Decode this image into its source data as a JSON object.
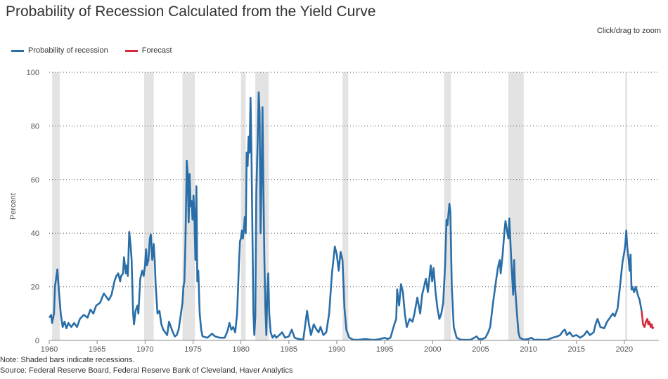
{
  "header": {
    "title": "Probability of Recession Calculated from the Yield Curve",
    "zoom_hint": "Click/drag to zoom"
  },
  "footer": {
    "note": "Note: Shaded bars indicate recessions.",
    "source": "Source: Federal Reserve Board, Federal Reserve Bank of Cleveland, Haver Analytics"
  },
  "colors": {
    "series": "#2a6ea8",
    "forecast": "#d42a3c",
    "recession": "#e3e3e3",
    "grid": "#444444"
  },
  "chart_data": {
    "type": "line",
    "title": "Probability of Recession Calculated from the Yield Curve",
    "xlabel": "",
    "ylabel": "Percent",
    "xlim": [
      1960,
      2023.6
    ],
    "ylim": [
      0,
      100
    ],
    "x_ticks": [
      1960,
      1965,
      1970,
      1975,
      1980,
      1985,
      1990,
      1995,
      2000,
      2005,
      2010,
      2015,
      2020
    ],
    "y_ticks": [
      0,
      20,
      40,
      60,
      80,
      100
    ],
    "grid": "horizontal dotted",
    "legend_position": "top-left",
    "recessions": [
      [
        1960.3,
        1961.1
      ],
      [
        1969.9,
        1970.9
      ],
      [
        1973.9,
        1975.2
      ],
      [
        1980.0,
        1980.5
      ],
      [
        1981.5,
        1982.9
      ],
      [
        1990.6,
        1991.2
      ],
      [
        2001.2,
        2001.9
      ],
      [
        2007.9,
        2009.5
      ],
      [
        2020.1,
        2020.3
      ]
    ],
    "series": [
      {
        "name": "Probability of recession",
        "points": [
          [
            1960.0,
            8.5
          ],
          [
            1960.2,
            9.5
          ],
          [
            1960.3,
            6.5
          ],
          [
            1960.5,
            10
          ],
          [
            1960.6,
            20
          ],
          [
            1960.85,
            26.5
          ],
          [
            1961.0,
            19
          ],
          [
            1961.2,
            10
          ],
          [
            1961.4,
            5
          ],
          [
            1961.6,
            7
          ],
          [
            1961.8,
            4.5
          ],
          [
            1962.0,
            6.5
          ],
          [
            1962.3,
            5
          ],
          [
            1962.6,
            6.5
          ],
          [
            1962.9,
            5
          ],
          [
            1963.2,
            8
          ],
          [
            1963.6,
            9.5
          ],
          [
            1964.0,
            8.5
          ],
          [
            1964.3,
            11.5
          ],
          [
            1964.6,
            10
          ],
          [
            1964.9,
            13
          ],
          [
            1965.3,
            14
          ],
          [
            1965.7,
            17.5
          ],
          [
            1966.0,
            16
          ],
          [
            1966.2,
            15
          ],
          [
            1966.5,
            17
          ],
          [
            1966.8,
            22
          ],
          [
            1967.0,
            24
          ],
          [
            1967.2,
            25
          ],
          [
            1967.4,
            22
          ],
          [
            1967.5,
            24
          ],
          [
            1967.7,
            25
          ],
          [
            1967.8,
            31
          ],
          [
            1968.0,
            25
          ],
          [
            1968.1,
            28
          ],
          [
            1968.2,
            24
          ],
          [
            1968.35,
            40.5
          ],
          [
            1968.5,
            35
          ],
          [
            1968.6,
            30
          ],
          [
            1968.75,
            10
          ],
          [
            1968.85,
            6
          ],
          [
            1969.0,
            11
          ],
          [
            1969.2,
            13
          ],
          [
            1969.3,
            10
          ],
          [
            1969.5,
            23
          ],
          [
            1969.7,
            26
          ],
          [
            1969.85,
            24
          ],
          [
            1970.0,
            28
          ],
          [
            1970.1,
            34
          ],
          [
            1970.2,
            28
          ],
          [
            1970.35,
            30
          ],
          [
            1970.5,
            38
          ],
          [
            1970.6,
            39.5
          ],
          [
            1970.75,
            30
          ],
          [
            1970.9,
            36
          ],
          [
            1971.0,
            30
          ],
          [
            1971.1,
            21
          ],
          [
            1971.3,
            10
          ],
          [
            1971.5,
            11
          ],
          [
            1971.7,
            6
          ],
          [
            1971.9,
            4
          ],
          [
            1972.1,
            3
          ],
          [
            1972.3,
            2
          ],
          [
            1972.5,
            7
          ],
          [
            1972.7,
            5
          ],
          [
            1972.9,
            3
          ],
          [
            1973.1,
            1.5
          ],
          [
            1973.3,
            2
          ],
          [
            1973.5,
            4
          ],
          [
            1973.7,
            9
          ],
          [
            1973.9,
            14
          ],
          [
            1974.0,
            20
          ],
          [
            1974.1,
            22
          ],
          [
            1974.2,
            35
          ],
          [
            1974.3,
            55
          ],
          [
            1974.35,
            67
          ],
          [
            1974.45,
            62
          ],
          [
            1974.55,
            44
          ],
          [
            1974.65,
            62
          ],
          [
            1974.75,
            50
          ],
          [
            1974.85,
            52
          ],
          [
            1974.95,
            45
          ],
          [
            1975.05,
            54
          ],
          [
            1975.15,
            46
          ],
          [
            1975.25,
            30
          ],
          [
            1975.35,
            57.5
          ],
          [
            1975.45,
            22
          ],
          [
            1975.55,
            26
          ],
          [
            1975.7,
            10
          ],
          [
            1975.85,
            4
          ],
          [
            1976.0,
            1.5
          ],
          [
            1976.5,
            1
          ],
          [
            1977.0,
            2.5
          ],
          [
            1977.3,
            1.5
          ],
          [
            1977.8,
            1
          ],
          [
            1978.3,
            1
          ],
          [
            1978.6,
            3.5
          ],
          [
            1978.8,
            6.5
          ],
          [
            1979.0,
            4
          ],
          [
            1979.2,
            5
          ],
          [
            1979.4,
            3
          ],
          [
            1979.6,
            10
          ],
          [
            1979.8,
            29
          ],
          [
            1979.9,
            37
          ],
          [
            1980.0,
            38
          ],
          [
            1980.1,
            41
          ],
          [
            1980.2,
            38
          ],
          [
            1980.3,
            41
          ],
          [
            1980.4,
            46
          ],
          [
            1980.5,
            40
          ],
          [
            1980.6,
            70
          ],
          [
            1980.7,
            65
          ],
          [
            1980.8,
            76
          ],
          [
            1980.9,
            70
          ],
          [
            1981.0,
            90.5
          ],
          [
            1981.1,
            70
          ],
          [
            1981.2,
            40
          ],
          [
            1981.3,
            10
          ],
          [
            1981.4,
            2
          ],
          [
            1981.5,
            9
          ],
          [
            1981.6,
            55
          ],
          [
            1981.75,
            75
          ],
          [
            1981.85,
            92.5
          ],
          [
            1981.95,
            85
          ],
          [
            1982.05,
            40
          ],
          [
            1982.15,
            60
          ],
          [
            1982.25,
            87
          ],
          [
            1982.35,
            55
          ],
          [
            1982.45,
            30
          ],
          [
            1982.55,
            12
          ],
          [
            1982.65,
            2
          ],
          [
            1982.75,
            17
          ],
          [
            1982.85,
            25
          ],
          [
            1982.95,
            10
          ],
          [
            1983.1,
            3
          ],
          [
            1983.3,
            1
          ],
          [
            1983.5,
            2
          ],
          [
            1983.7,
            1
          ],
          [
            1984.0,
            2
          ],
          [
            1984.3,
            3
          ],
          [
            1984.6,
            1
          ],
          [
            1985.0,
            1.5
          ],
          [
            1985.3,
            4
          ],
          [
            1985.6,
            1
          ],
          [
            1986.0,
            0.5
          ],
          [
            1986.5,
            0.3
          ],
          [
            1986.9,
            11
          ],
          [
            1987.1,
            6
          ],
          [
            1987.3,
            2
          ],
          [
            1987.6,
            6
          ],
          [
            1987.9,
            4
          ],
          [
            1988.1,
            3
          ],
          [
            1988.3,
            5
          ],
          [
            1988.6,
            2
          ],
          [
            1988.9,
            3
          ],
          [
            1989.2,
            10
          ],
          [
            1989.5,
            25
          ],
          [
            1989.8,
            35
          ],
          [
            1990.0,
            32
          ],
          [
            1990.2,
            26
          ],
          [
            1990.4,
            33
          ],
          [
            1990.6,
            30
          ],
          [
            1990.8,
            12
          ],
          [
            1991.0,
            4
          ],
          [
            1991.3,
            1
          ],
          [
            1991.7,
            0.3
          ],
          [
            1992.2,
            0.2
          ],
          [
            1993.0,
            0.5
          ],
          [
            1993.5,
            0.3
          ],
          [
            1994.0,
            0.2
          ],
          [
            1994.5,
            0.5
          ],
          [
            1995.0,
            1
          ],
          [
            1995.3,
            0.5
          ],
          [
            1995.6,
            1
          ],
          [
            1996.0,
            6
          ],
          [
            1996.2,
            8
          ],
          [
            1996.3,
            19
          ],
          [
            1996.5,
            13
          ],
          [
            1996.7,
            21
          ],
          [
            1996.9,
            18
          ],
          [
            1997.1,
            10
          ],
          [
            1997.3,
            5
          ],
          [
            1997.6,
            8
          ],
          [
            1997.9,
            7
          ],
          [
            1998.1,
            10
          ],
          [
            1998.4,
            16
          ],
          [
            1998.7,
            10
          ],
          [
            1998.9,
            17
          ],
          [
            1999.1,
            20
          ],
          [
            1999.3,
            23
          ],
          [
            1999.5,
            18
          ],
          [
            1999.8,
            28
          ],
          [
            1999.95,
            22
          ],
          [
            2000.1,
            27
          ],
          [
            2000.3,
            18
          ],
          [
            2000.5,
            12
          ],
          [
            2000.7,
            8
          ],
          [
            2000.9,
            10
          ],
          [
            2001.1,
            14
          ],
          [
            2001.3,
            28
          ],
          [
            2001.45,
            45
          ],
          [
            2001.55,
            43
          ],
          [
            2001.75,
            51
          ],
          [
            2001.85,
            48
          ],
          [
            2002.0,
            20
          ],
          [
            2002.2,
            5
          ],
          [
            2002.5,
            1
          ],
          [
            2002.9,
            0.3
          ],
          [
            2003.5,
            0.2
          ],
          [
            2004.0,
            0.3
          ],
          [
            2004.6,
            1.5
          ],
          [
            2004.8,
            0.5
          ],
          [
            2005.2,
            0.5
          ],
          [
            2005.5,
            1
          ],
          [
            2005.8,
            3
          ],
          [
            2006.0,
            5
          ],
          [
            2006.3,
            14
          ],
          [
            2006.6,
            22
          ],
          [
            2006.8,
            27
          ],
          [
            2007.0,
            30
          ],
          [
            2007.1,
            25
          ],
          [
            2007.3,
            32
          ],
          [
            2007.5,
            41
          ],
          [
            2007.6,
            44.5
          ],
          [
            2007.8,
            40
          ],
          [
            2007.9,
            38
          ],
          [
            2008.0,
            45.5
          ],
          [
            2008.2,
            30
          ],
          [
            2008.4,
            17
          ],
          [
            2008.5,
            30
          ],
          [
            2008.6,
            20
          ],
          [
            2008.8,
            10
          ],
          [
            2008.95,
            3
          ],
          [
            2009.1,
            1
          ],
          [
            2009.5,
            0.3
          ],
          [
            2010.0,
            0.5
          ],
          [
            2010.3,
            1
          ],
          [
            2010.6,
            0.2
          ],
          [
            2011.0,
            0.3
          ],
          [
            2011.5,
            0.2
          ],
          [
            2012.0,
            0.3
          ],
          [
            2012.5,
            1
          ],
          [
            2013.0,
            1.5
          ],
          [
            2013.3,
            2
          ],
          [
            2013.6,
            3.5
          ],
          [
            2013.8,
            4
          ],
          [
            2014.0,
            2
          ],
          [
            2014.3,
            3
          ],
          [
            2014.6,
            1.5
          ],
          [
            2015.0,
            2
          ],
          [
            2015.4,
            1
          ],
          [
            2015.8,
            2
          ],
          [
            2016.1,
            3.5
          ],
          [
            2016.4,
            2
          ],
          [
            2016.8,
            3
          ],
          [
            2017.0,
            6
          ],
          [
            2017.2,
            8
          ],
          [
            2017.5,
            5
          ],
          [
            2017.9,
            4.5
          ],
          [
            2018.2,
            7
          ],
          [
            2018.5,
            8.5
          ],
          [
            2018.8,
            10
          ],
          [
            2019.0,
            9
          ],
          [
            2019.3,
            12
          ],
          [
            2019.6,
            22
          ],
          [
            2019.8,
            29
          ],
          [
            2020.0,
            33
          ],
          [
            2020.1,
            36
          ],
          [
            2020.2,
            41
          ],
          [
            2020.3,
            35
          ],
          [
            2020.45,
            30
          ],
          [
            2020.55,
            26
          ],
          [
            2020.65,
            32
          ],
          [
            2020.75,
            19
          ],
          [
            2020.85,
            20
          ],
          [
            2021.0,
            18
          ],
          [
            2021.2,
            20
          ],
          [
            2021.4,
            17
          ],
          [
            2021.6,
            15
          ],
          [
            2021.8,
            11
          ]
        ]
      },
      {
        "name": "Forecast",
        "points": [
          [
            2021.8,
            11
          ],
          [
            2021.95,
            6
          ],
          [
            2022.1,
            5
          ],
          [
            2022.25,
            7
          ],
          [
            2022.4,
            8
          ],
          [
            2022.5,
            6
          ],
          [
            2022.6,
            7
          ],
          [
            2022.75,
            5
          ],
          [
            2022.85,
            6
          ],
          [
            2022.95,
            4.5
          ],
          [
            2023.05,
            5
          ]
        ]
      }
    ]
  }
}
